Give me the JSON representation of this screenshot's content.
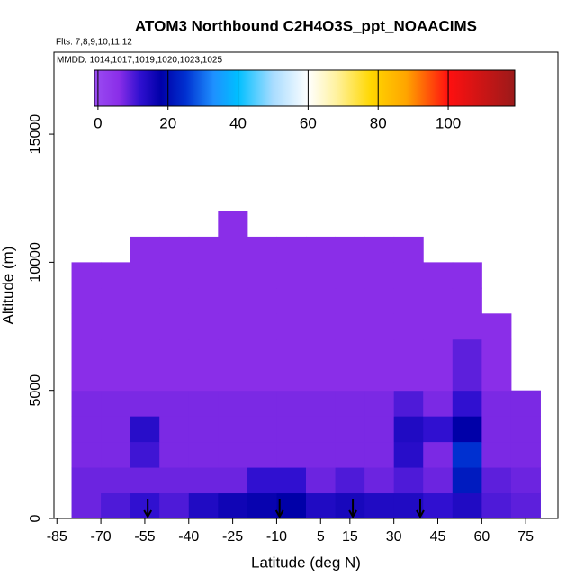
{
  "chart_data": {
    "type": "curtain",
    "title": "ATOM3 Northbound C2H4O3S_ppt_NOAACIMS",
    "flights_note": "Flts: 7,8,9,10,11,12",
    "dates_note": "MMDD: 1014,1017,1019,1020,1023,1025",
    "x_label": "Latitude (deg N)",
    "y_label": "Altitude (m)",
    "xlim": [
      -86,
      86
    ],
    "ylim": [
      0,
      18200
    ],
    "xticks": [
      -85,
      -70,
      -55,
      -40,
      -25,
      -10,
      5,
      15,
      30,
      45,
      60,
      75
    ],
    "yticks": [
      0,
      5000,
      10000,
      15000
    ],
    "lat_edges": [
      -80,
      -70,
      -60,
      -50,
      -40,
      -30,
      -20,
      -10,
      0,
      10,
      20,
      30,
      40,
      50,
      60,
      70,
      80
    ],
    "alt_edges": [
      0,
      1000,
      2000,
      3000,
      4000,
      5000,
      6000,
      7000,
      8000,
      9000,
      10000,
      11000,
      12000
    ],
    "z": [
      [
        8,
        10,
        12,
        10,
        14,
        16,
        17,
        18,
        14,
        15,
        14,
        14,
        12,
        14,
        10,
        9
      ],
      [
        8,
        8,
        8,
        8,
        8,
        8,
        12,
        12,
        8,
        10,
        8,
        10,
        8,
        22,
        9,
        8
      ],
      [
        7,
        7,
        11,
        7,
        7,
        7,
        7,
        7,
        7,
        7,
        7,
        13,
        7,
        25,
        7,
        7
      ],
      [
        7,
        7,
        13,
        7,
        7,
        7,
        7,
        7,
        7,
        7,
        7,
        14,
        12,
        18,
        7,
        7
      ],
      [
        7,
        7,
        7,
        7,
        7,
        7,
        7,
        7,
        7,
        7,
        7,
        10,
        7,
        12,
        7,
        7
      ],
      [
        6,
        6,
        6,
        6,
        6,
        6,
        6,
        6,
        6,
        6,
        6,
        6,
        6,
        9,
        6,
        null
      ],
      [
        6,
        6,
        6,
        6,
        6,
        6,
        6,
        6,
        6,
        6,
        6,
        6,
        6,
        9,
        6,
        null
      ],
      [
        6,
        6,
        6,
        6,
        6,
        6,
        6,
        6,
        6,
        6,
        6,
        6,
        6,
        6,
        6,
        null
      ],
      [
        6,
        6,
        6,
        6,
        6,
        6,
        6,
        6,
        6,
        6,
        6,
        6,
        6,
        6,
        null,
        null
      ],
      [
        6,
        6,
        6,
        6,
        6,
        6,
        6,
        6,
        6,
        6,
        6,
        6,
        6,
        6,
        null,
        null
      ],
      [
        null,
        null,
        6,
        6,
        6,
        6,
        6,
        6,
        6,
        6,
        6,
        6,
        null,
        null,
        null,
        null
      ],
      [
        null,
        null,
        null,
        null,
        null,
        6,
        null,
        null,
        null,
        null,
        null,
        null,
        null,
        null,
        null,
        null
      ]
    ],
    "arrows_lat": [
      -54,
      -9,
      16,
      39
    ],
    "colorbar_lim": [
      -1,
      119
    ],
    "colorbar_ticks": [
      0,
      20,
      40,
      60,
      80,
      100
    ],
    "colorscale": [
      [
        -1,
        "#9a4cf2"
      ],
      [
        6,
        "#8a2ee8"
      ],
      [
        12,
        "#3010d0"
      ],
      [
        18,
        "#0000a8"
      ],
      [
        25,
        "#0030d0"
      ],
      [
        33,
        "#1e90ff"
      ],
      [
        40,
        "#00bfff"
      ],
      [
        50,
        "#a8dcff"
      ],
      [
        60,
        "#ffffff"
      ],
      [
        68,
        "#fff2a0"
      ],
      [
        78,
        "#ffd700"
      ],
      [
        88,
        "#ffa500"
      ],
      [
        100,
        "#ff1010"
      ],
      [
        119,
        "#9b1a1a"
      ]
    ]
  }
}
